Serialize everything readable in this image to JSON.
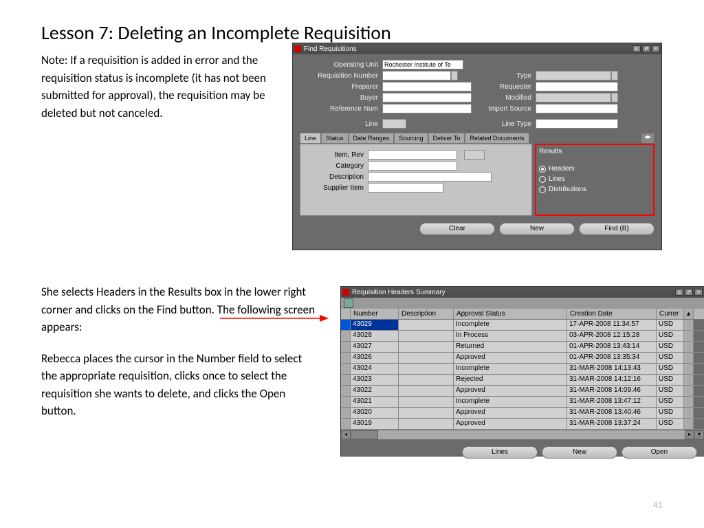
{
  "page_title": "Lesson 7:  Deleting an Incomplete Requisition",
  "note": "Note:  If a requisition is added in error and the requisition status is incomplete (it has not been submitted for approval), the requisition may be deleted but not canceled.",
  "para2a": "She selects Headers in the Results box in the lower right corner and clicks on the Find button.  The following screen appears:",
  "para3": "Rebecca places the cursor in the Number field to select the appropriate requisition, clicks once to select the requisition she wants to delete, and clicks the Open button.",
  "page_number": "41",
  "win1": {
    "title": "Find Requisitions",
    "labels": {
      "operating_unit": "Operating Unit",
      "requisition_number": "Requisition Number",
      "preparer": "Preparer",
      "buyer": "Buyer",
      "reference_num": "Reference Num",
      "type": "Type",
      "requester": "Requester",
      "modified": "Modified",
      "import_source": "Import Source",
      "line": "Line",
      "line_type": "Line Type"
    },
    "operating_unit_value": "Rochester Institute of Te",
    "tabs": [
      "Line",
      "Status",
      "Date Ranges",
      "Sourcing",
      "Deliver To",
      "Related Documents"
    ],
    "panel_labels": {
      "item_rev": "Item, Rev",
      "category": "Category",
      "description": "Description",
      "supplier_item": "Supplier Item"
    },
    "results_title": "Results",
    "results_options": [
      "Headers",
      "Lines",
      "Distributions"
    ],
    "results_selected": "Headers",
    "buttons": {
      "clear": "Clear",
      "new": "New",
      "find": "Find (B)"
    }
  },
  "win2": {
    "title": "Requisition Headers Summary",
    "columns": [
      "Number",
      "Description",
      "Approval Status",
      "Creation Date",
      "Currer"
    ],
    "rows": [
      {
        "num": "43029",
        "desc": "",
        "status": "Incomplete",
        "date": "17-APR-2008 11:34:57",
        "cur": "USD",
        "selected": true
      },
      {
        "num": "43028",
        "desc": "",
        "status": "In Process",
        "date": "03-APR-2008 12:15:28",
        "cur": "USD"
      },
      {
        "num": "43027",
        "desc": "",
        "status": "Returned",
        "date": "01-APR-2008 13:43:14",
        "cur": "USD"
      },
      {
        "num": "43026",
        "desc": "",
        "status": "Approved",
        "date": "01-APR-2008 13:35:34",
        "cur": "USD"
      },
      {
        "num": "43024",
        "desc": "",
        "status": "Incomplete",
        "date": "31-MAR-2008 14:13:43",
        "cur": "USD"
      },
      {
        "num": "43023",
        "desc": "",
        "status": "Rejected",
        "date": "31-MAR-2008 14:12:16",
        "cur": "USD"
      },
      {
        "num": "43022",
        "desc": "",
        "status": "Approved",
        "date": "31-MAR-2008 14:09:46",
        "cur": "USD"
      },
      {
        "num": "43021",
        "desc": "",
        "status": "Incomplete",
        "date": "31-MAR-2008 13:47:12",
        "cur": "USD"
      },
      {
        "num": "43020",
        "desc": "",
        "status": "Approved",
        "date": "31-MAR-2008 13:40:46",
        "cur": "USD"
      },
      {
        "num": "43019",
        "desc": "",
        "status": "Approved",
        "date": "31-MAR-2008 13:37:24",
        "cur": "USD"
      }
    ],
    "buttons": {
      "lines": "Lines",
      "new": "New",
      "open": "Open"
    }
  }
}
